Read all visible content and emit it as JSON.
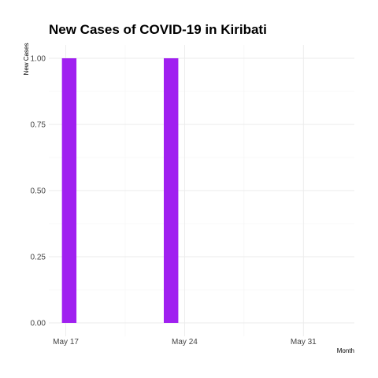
{
  "chart_data": {
    "type": "bar",
    "title": "New Cases of COVID-19 in Kiribati",
    "xlabel": "Month",
    "ylabel": "New Cases",
    "bar_color": "#a020f0",
    "x_axis": {
      "type": "date",
      "range": [
        "2020-05-16",
        "2020-06-03"
      ],
      "ticks": [
        {
          "date": "2020-05-17",
          "label": "May 17"
        },
        {
          "date": "2020-05-24",
          "label": "May 24"
        },
        {
          "date": "2020-05-31",
          "label": "May 31"
        }
      ]
    },
    "y_axis": {
      "range": [
        0,
        1
      ],
      "ticks": [
        {
          "value": 0,
          "label": "0.00"
        },
        {
          "value": 0.25,
          "label": "0.25"
        },
        {
          "value": 0.5,
          "label": "0.50"
        },
        {
          "value": 0.75,
          "label": "0.75"
        },
        {
          "value": 1,
          "label": "1.00"
        }
      ]
    },
    "grid": true,
    "legend": "none",
    "bars": [
      {
        "date": "2020-05-17",
        "value": 1
      },
      {
        "date": "2020-05-23",
        "value": 1
      }
    ]
  }
}
